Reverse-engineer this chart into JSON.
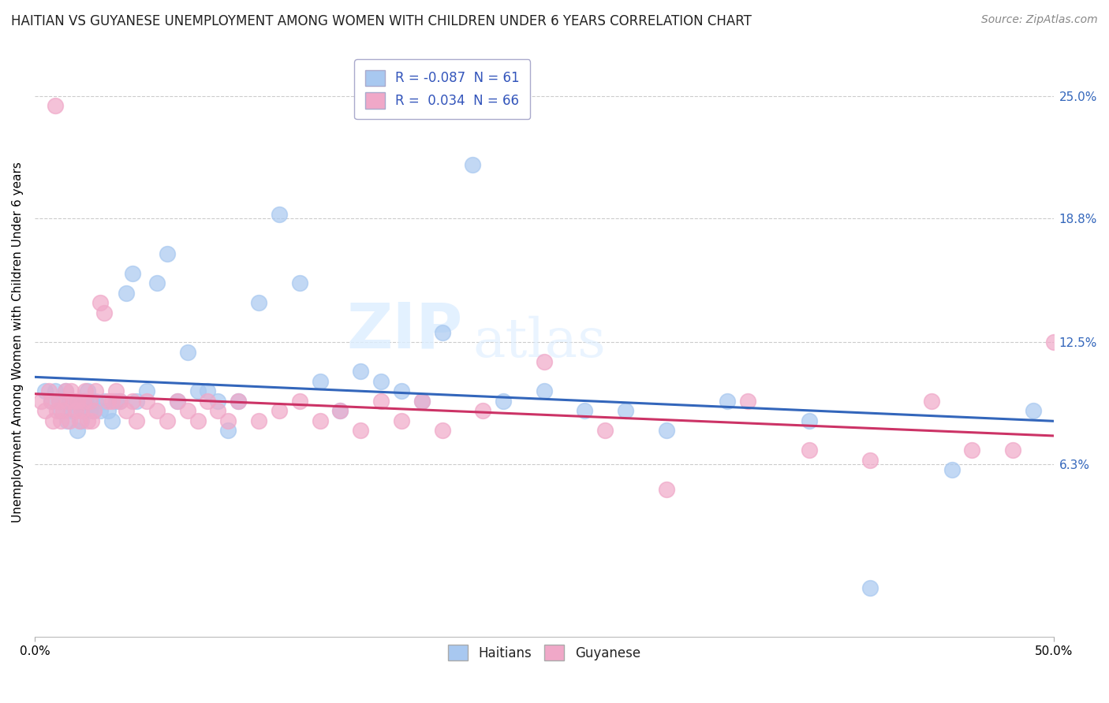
{
  "title": "HAITIAN VS GUYANESE UNEMPLOYMENT AMONG WOMEN WITH CHILDREN UNDER 6 YEARS CORRELATION CHART",
  "source": "Source: ZipAtlas.com",
  "ylabel": "Unemployment Among Women with Children Under 6 years",
  "xlim": [
    0,
    0.5
  ],
  "ylim": [
    -0.025,
    0.275
  ],
  "xtick_positions": [
    0.0,
    0.5
  ],
  "xticklabels": [
    "0.0%",
    "50.0%"
  ],
  "ytick_positions": [
    0.063,
    0.125,
    0.188,
    0.25
  ],
  "ytick_labels": [
    "6.3%",
    "12.5%",
    "18.8%",
    "25.0%"
  ],
  "R_haitian": -0.087,
  "N_haitian": 61,
  "R_guyanese": 0.034,
  "N_guyanese": 66,
  "haitian_color": "#a8c8f0",
  "guyanese_color": "#f0a8c8",
  "haitian_line_color": "#3366bb",
  "guyanese_line_color": "#cc3366",
  "watermark_zip": "ZIP",
  "watermark_atlas": "atlas",
  "background_color": "#ffffff",
  "grid_color": "#cccccc",
  "haitian_x": [
    0.005,
    0.008,
    0.01,
    0.012,
    0.013,
    0.015,
    0.016,
    0.017,
    0.018,
    0.019,
    0.02,
    0.021,
    0.022,
    0.023,
    0.024,
    0.025,
    0.026,
    0.027,
    0.028,
    0.029,
    0.03,
    0.032,
    0.034,
    0.036,
    0.038,
    0.04,
    0.042,
    0.045,
    0.048,
    0.05,
    0.055,
    0.06,
    0.065,
    0.07,
    0.075,
    0.08,
    0.085,
    0.09,
    0.095,
    0.1,
    0.11,
    0.12,
    0.13,
    0.14,
    0.15,
    0.16,
    0.17,
    0.18,
    0.19,
    0.2,
    0.215,
    0.23,
    0.25,
    0.27,
    0.29,
    0.31,
    0.34,
    0.38,
    0.41,
    0.45,
    0.49
  ],
  "haitian_y": [
    0.1,
    0.095,
    0.1,
    0.095,
    0.09,
    0.1,
    0.085,
    0.095,
    0.09,
    0.095,
    0.09,
    0.08,
    0.095,
    0.085,
    0.09,
    0.095,
    0.1,
    0.09,
    0.095,
    0.09,
    0.095,
    0.09,
    0.095,
    0.09,
    0.085,
    0.095,
    0.095,
    0.15,
    0.16,
    0.095,
    0.1,
    0.155,
    0.17,
    0.095,
    0.12,
    0.1,
    0.1,
    0.095,
    0.08,
    0.095,
    0.145,
    0.19,
    0.155,
    0.105,
    0.09,
    0.11,
    0.105,
    0.1,
    0.095,
    0.13,
    0.215,
    0.095,
    0.1,
    0.09,
    0.09,
    0.08,
    0.095,
    0.085,
    0.0,
    0.06,
    0.09
  ],
  "guyanese_x": [
    0.003,
    0.005,
    0.007,
    0.008,
    0.009,
    0.01,
    0.011,
    0.012,
    0.013,
    0.014,
    0.015,
    0.016,
    0.017,
    0.018,
    0.019,
    0.02,
    0.021,
    0.022,
    0.023,
    0.024,
    0.025,
    0.026,
    0.027,
    0.028,
    0.029,
    0.03,
    0.032,
    0.034,
    0.036,
    0.038,
    0.04,
    0.042,
    0.045,
    0.048,
    0.05,
    0.055,
    0.06,
    0.065,
    0.07,
    0.075,
    0.08,
    0.085,
    0.09,
    0.095,
    0.1,
    0.11,
    0.12,
    0.13,
    0.14,
    0.15,
    0.16,
    0.17,
    0.18,
    0.19,
    0.2,
    0.22,
    0.25,
    0.28,
    0.31,
    0.35,
    0.38,
    0.41,
    0.44,
    0.46,
    0.48,
    0.5
  ],
  "guyanese_y": [
    0.095,
    0.09,
    0.1,
    0.095,
    0.085,
    0.245,
    0.09,
    0.095,
    0.085,
    0.09,
    0.1,
    0.095,
    0.085,
    0.1,
    0.095,
    0.09,
    0.095,
    0.085,
    0.09,
    0.095,
    0.1,
    0.085,
    0.095,
    0.085,
    0.09,
    0.1,
    0.145,
    0.14,
    0.095,
    0.095,
    0.1,
    0.095,
    0.09,
    0.095,
    0.085,
    0.095,
    0.09,
    0.085,
    0.095,
    0.09,
    0.085,
    0.095,
    0.09,
    0.085,
    0.095,
    0.085,
    0.09,
    0.095,
    0.085,
    0.09,
    0.08,
    0.095,
    0.085,
    0.095,
    0.08,
    0.09,
    0.115,
    0.08,
    0.05,
    0.095,
    0.07,
    0.065,
    0.095,
    0.07,
    0.07,
    0.125
  ]
}
